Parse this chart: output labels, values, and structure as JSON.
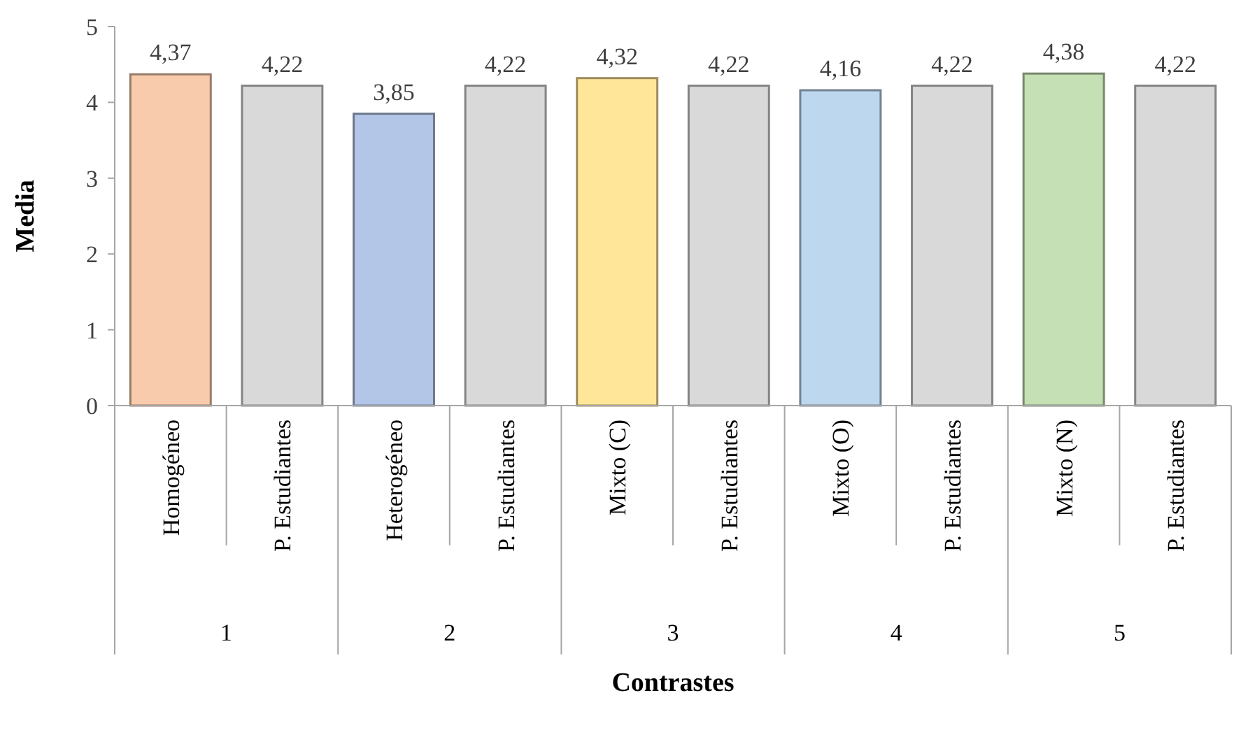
{
  "chart_data": {
    "type": "bar",
    "xlabel": "Contrastes",
    "ylabel": "Media",
    "categories": [
      "Homogéneo",
      "P. Estudiantes",
      "Heterogéneo",
      "P. Estudiantes",
      "Mixto (C)",
      "P. Estudiantes",
      "Mixto (O)",
      "P. Estudiantes",
      "Mixto (N)",
      "P. Estudiantes"
    ],
    "values": [
      4.37,
      4.22,
      3.85,
      4.22,
      4.32,
      4.22,
      4.16,
      4.22,
      4.38,
      4.22
    ],
    "colors": [
      "#f8cbad",
      "#d9d9d9",
      "#b4c6e7",
      "#d9d9d9",
      "#ffe699",
      "#d9d9d9",
      "#bdd7ee",
      "#d9d9d9",
      "#c5e0b4",
      "#d9d9d9"
    ],
    "annotations": [
      "1",
      "2",
      "3",
      "4",
      "5"
    ],
    "value_labels": [
      "4,37",
      "4,22",
      "3,85",
      "4,22",
      "4,32",
      "4,22",
      "4,16",
      "4,22",
      "4,38",
      "4,22"
    ],
    "ylim": [
      0,
      5
    ],
    "yticks": [
      0,
      1,
      2,
      3,
      4,
      5
    ],
    "grid": false
  }
}
